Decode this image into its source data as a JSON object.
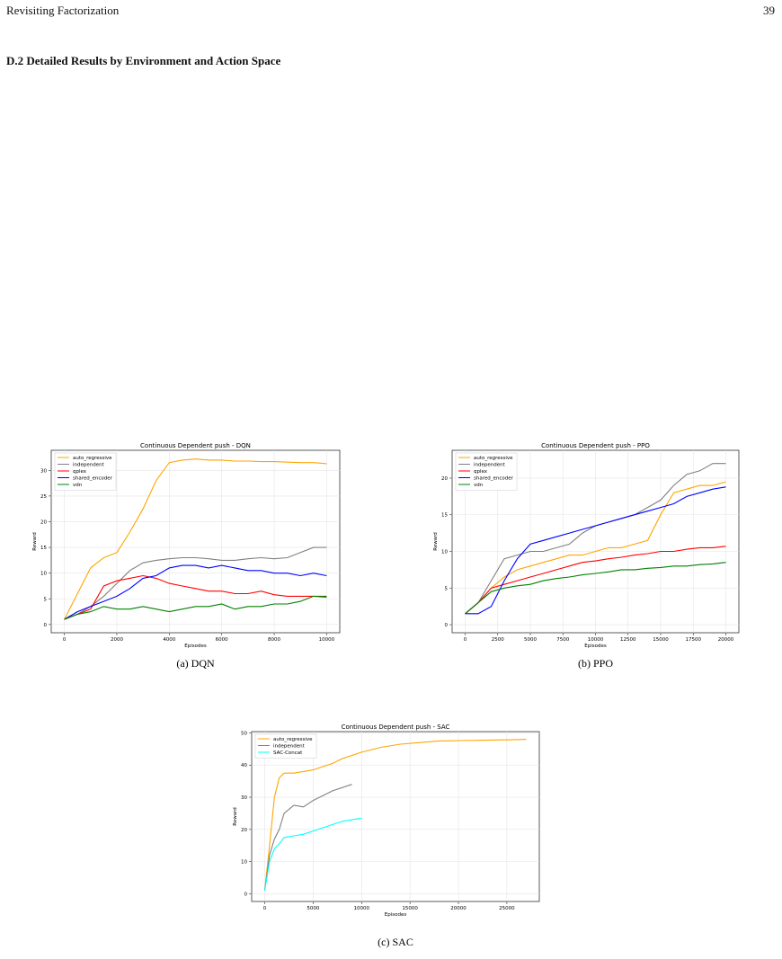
{
  "header": {
    "title": "Revisiting Factorization",
    "page": "39"
  },
  "section": {
    "title": "D.2   Detailed Results by Environment and Action Space"
  },
  "chart_data": [
    {
      "type": "line",
      "title": "Continuous Dependent push - DQN",
      "caption": "(a) DQN",
      "x_label": "Episodes",
      "y_label": "Reward",
      "grid": true,
      "legend": "upper left",
      "x": [
        0,
        500,
        1000,
        1500,
        2000,
        2500,
        3000,
        3500,
        4000,
        4500,
        5000,
        5500,
        6000,
        6500,
        7000,
        7500,
        8000,
        8500,
        9000,
        9500,
        10000
      ],
      "xlim": [
        -500,
        10500
      ],
      "xticks": [
        0,
        2000,
        4000,
        6000,
        8000,
        10000
      ],
      "ylim": [
        -1.6,
        33.9
      ],
      "yticks": [
        0,
        5,
        10,
        15,
        20,
        25,
        30
      ],
      "series": [
        {
          "name": "auto_regressive",
          "color": "#ffa500",
          "values": [
            1,
            6,
            11,
            13,
            14,
            18,
            22.5,
            28,
            31.5,
            32,
            32.2,
            32,
            32,
            31.8,
            31.8,
            31.7,
            31.7,
            31.6,
            31.5,
            31.5,
            31.3
          ]
        },
        {
          "name": "independent",
          "color": "#808080",
          "values": [
            1,
            2,
            3.5,
            5.5,
            8,
            10.5,
            12,
            12.5,
            12.8,
            13,
            13,
            12.8,
            12.5,
            12.5,
            12.8,
            13,
            12.8,
            13,
            14,
            15,
            15
          ]
        },
        {
          "name": "qplex",
          "color": "#ff0000",
          "values": [
            1,
            2,
            3,
            7.5,
            8.5,
            9,
            9.5,
            9,
            8,
            7.5,
            7,
            6.5,
            6.5,
            6,
            6,
            6.5,
            5.8,
            5.5,
            5.5,
            5.5,
            5.3
          ]
        },
        {
          "name": "shared_encoder",
          "color": "#0000ff",
          "values": [
            1,
            2.5,
            3.5,
            4.5,
            5.5,
            7,
            9,
            9.5,
            11,
            11.5,
            11.5,
            11,
            11.5,
            11,
            10.5,
            10.5,
            10,
            10,
            9.5,
            10,
            9.5
          ]
        },
        {
          "name": "vdn",
          "color": "#008000",
          "values": [
            1,
            2,
            2.5,
            3.5,
            3,
            3,
            3.5,
            3,
            2.5,
            3,
            3.5,
            3.5,
            4,
            3,
            3.5,
            3.5,
            4,
            4,
            4.5,
            5.5,
            5.5
          ]
        }
      ]
    },
    {
      "type": "line",
      "title": "Continuous Dependent push - PPO",
      "caption": "(b) PPO",
      "x_label": "Episodes",
      "y_label": "Reward",
      "grid": true,
      "legend": "upper left",
      "x": [
        0,
        1000,
        2000,
        3000,
        4000,
        5000,
        6000,
        7000,
        8000,
        9000,
        10000,
        11000,
        12000,
        13000,
        14000,
        15000,
        16000,
        17000,
        18000,
        19000,
        20000
      ],
      "xlim": [
        -1000,
        21000
      ],
      "xticks": [
        0,
        2500,
        5000,
        7500,
        10000,
        12500,
        15000,
        17500,
        20000
      ],
      "ylim": [
        -1.1,
        23.8
      ],
      "yticks": [
        0,
        5,
        10,
        15,
        20
      ],
      "series": [
        {
          "name": "auto_regressive",
          "color": "#ffa500",
          "values": [
            1.5,
            3,
            5,
            6.5,
            7.5,
            8,
            8.5,
            9,
            9.5,
            9.5,
            10,
            10.5,
            10.5,
            11,
            11.5,
            15,
            18,
            18.5,
            19,
            19,
            19.5
          ]
        },
        {
          "name": "independent",
          "color": "#808080",
          "values": [
            1.5,
            3,
            6,
            9,
            9.5,
            10,
            10,
            10.5,
            11,
            12.5,
            13.5,
            14,
            14.5,
            15,
            16,
            17,
            19,
            20.5,
            21,
            22,
            22
          ]
        },
        {
          "name": "qplex",
          "color": "#ff0000",
          "values": [
            1.5,
            3,
            5,
            5.5,
            6,
            6.5,
            7,
            7.5,
            8,
            8.5,
            8.7,
            9,
            9.2,
            9.5,
            9.7,
            10,
            10,
            10.3,
            10.5,
            10.5,
            10.7
          ]
        },
        {
          "name": "shared_encoder",
          "color": "#0000ff",
          "values": [
            1.5,
            1.5,
            2.5,
            6,
            9,
            11,
            11.5,
            12,
            12.5,
            13,
            13.5,
            14,
            14.5,
            15,
            15.5,
            16,
            16.5,
            17.5,
            18,
            18.5,
            18.8
          ]
        },
        {
          "name": "vdn",
          "color": "#008000",
          "values": [
            1.5,
            3,
            4.5,
            5,
            5.3,
            5.5,
            6,
            6.3,
            6.5,
            6.8,
            7,
            7.2,
            7.5,
            7.5,
            7.7,
            7.8,
            8,
            8,
            8.2,
            8.3,
            8.5
          ]
        }
      ]
    },
    {
      "type": "line",
      "title": "Continuous Dependent push - SAC",
      "caption": "(c) SAC",
      "x_label": "Episodes",
      "y_label": "Reward",
      "grid": true,
      "legend": "upper left",
      "xlim": [
        -1350,
        28350
      ],
      "xticks": [
        0,
        5000,
        10000,
        15000,
        20000,
        25000
      ],
      "ylim": [
        -2.4,
        50.4
      ],
      "yticks": [
        0,
        10,
        20,
        30,
        40,
        50
      ],
      "series": [
        {
          "name": "auto_regressive",
          "color": "#ffa500",
          "x": [
            0,
            500,
            1000,
            1500,
            2000,
            3000,
            4000,
            5000,
            6000,
            7000,
            8000,
            10000,
            12000,
            14000,
            16000,
            18000,
            20000,
            22000,
            24000,
            26000,
            27000
          ],
          "values": [
            1,
            15,
            30,
            36,
            37.5,
            37.5,
            38,
            38.5,
            39.5,
            40.5,
            42,
            44,
            45.5,
            46.5,
            47,
            47.5,
            47.6,
            47.7,
            47.8,
            47.9,
            48
          ]
        },
        {
          "name": "independent",
          "color": "#808080",
          "x": [
            0,
            500,
            1000,
            1500,
            2000,
            3000,
            4000,
            5000,
            6000,
            7000,
            8000,
            9000
          ],
          "values": [
            1,
            12,
            17,
            20,
            25,
            27.5,
            27,
            29,
            30.5,
            32,
            33,
            34
          ]
        },
        {
          "name": "SAC-Concat",
          "color": "#00ffff",
          "x": [
            0,
            500,
            1000,
            1500,
            2000,
            3000,
            4000,
            5000,
            6000,
            7000,
            8000,
            9000,
            10000
          ],
          "values": [
            1,
            10,
            14,
            15.5,
            17.5,
            18,
            18.5,
            19.5,
            20.5,
            21.5,
            22.5,
            23,
            23.5
          ]
        }
      ]
    }
  ]
}
